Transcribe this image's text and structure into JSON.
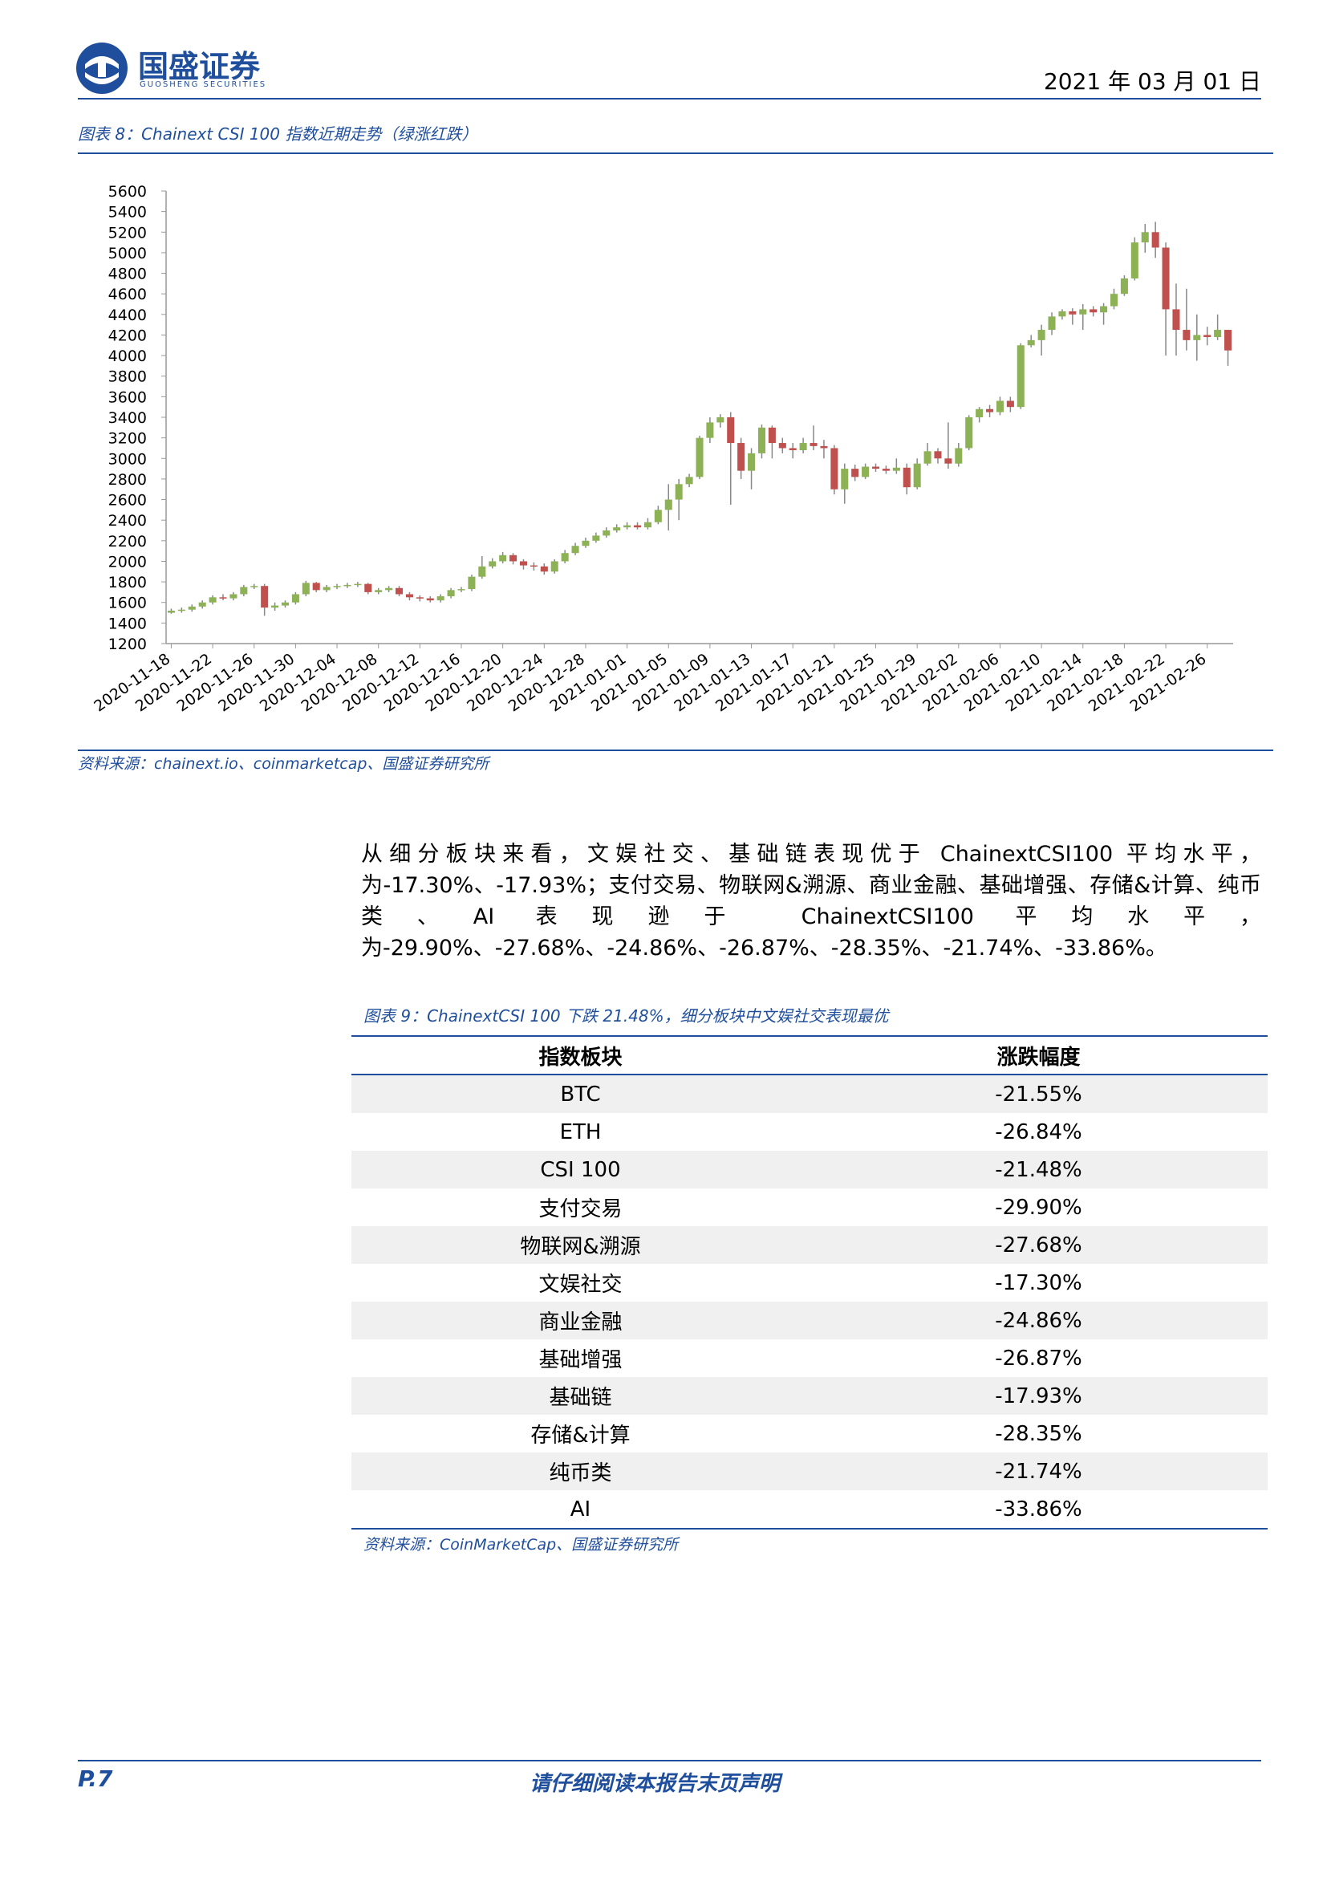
{
  "header": {
    "company": "国盛证券",
    "company_en": "GUOSHENG SECURITIES",
    "date": "2021 年 03 月 01 日"
  },
  "figure8": {
    "caption": "图表 8：Chainext CSI 100 指数近期走势（绿涨红跌）",
    "source": "资料来源：chainext.io、coinmarketcap、国盛证券研究所"
  },
  "chart_data": {
    "type": "candlestick",
    "categories": [
      "2020-11-18",
      null,
      null,
      null,
      "2020-11-22",
      null,
      null,
      null,
      "2020-11-26",
      null,
      null,
      null,
      "2020-11-30",
      null,
      null,
      null,
      "2020-12-04",
      null,
      null,
      null,
      "2020-12-08",
      null,
      null,
      null,
      "2020-12-12",
      null,
      null,
      null,
      "2020-12-16",
      null,
      null,
      null,
      "2020-12-20",
      null,
      null,
      null,
      "2020-12-24",
      null,
      null,
      null,
      "2020-12-28",
      null,
      null,
      null,
      "2021-01-01",
      null,
      null,
      null,
      "2021-01-05",
      null,
      null,
      null,
      "2021-01-09",
      null,
      null,
      null,
      "2021-01-13",
      null,
      null,
      null,
      "2021-01-17",
      null,
      null,
      null,
      "2021-01-21",
      null,
      null,
      null,
      "2021-01-25",
      null,
      null,
      null,
      "2021-01-29",
      null,
      null,
      null,
      "2021-02-02",
      null,
      null,
      null,
      "2021-02-06",
      null,
      null,
      null,
      "2021-02-10",
      null,
      null,
      null,
      "2021-02-14",
      null,
      null,
      null,
      "2021-02-18",
      null,
      null,
      null,
      "2021-02-22",
      null,
      null,
      null,
      "2021-02-26",
      null,
      null
    ],
    "open": [
      1500,
      1520,
      1530,
      1560,
      1600,
      1650,
      1640,
      1680,
      1750,
      1760,
      1550,
      1570,
      1600,
      1680,
      1790,
      1720,
      1750,
      1760,
      1770,
      1780,
      1700,
      1720,
      1740,
      1680,
      1650,
      1640,
      1620,
      1660,
      1720,
      1730,
      1850,
      1950,
      2000,
      2060,
      2000,
      1960,
      1950,
      1900,
      2000,
      2080,
      2150,
      2200,
      2250,
      2300,
      2330,
      2350,
      2330,
      2380,
      2500,
      2600,
      2750,
      2820,
      3200,
      3350,
      3400,
      3150,
      2880,
      3050,
      3300,
      3150,
      3100,
      3080,
      3150,
      3120,
      3100,
      2700,
      2900,
      2820,
      2920,
      2900,
      2880,
      2910,
      2720,
      2950,
      3070,
      3000,
      2950,
      3100,
      3400,
      3480,
      3450,
      3560,
      3500,
      4100,
      4150,
      4250,
      4380,
      4430,
      4400,
      4450,
      4420,
      4480,
      4600,
      4750,
      5100,
      5200,
      5050,
      4450,
      4250,
      4150,
      4200,
      4180,
      4250
    ],
    "high": [
      1540,
      1550,
      1580,
      1620,
      1670,
      1680,
      1700,
      1770,
      1780,
      1780,
      1600,
      1620,
      1700,
      1810,
      1800,
      1770,
      1780,
      1790,
      1800,
      1790,
      1740,
      1760,
      1760,
      1700,
      1670,
      1660,
      1680,
      1740,
      1750,
      1870,
      2050,
      2030,
      2090,
      2080,
      2020,
      1990,
      1980,
      2020,
      2110,
      2180,
      2230,
      2280,
      2330,
      2360,
      2380,
      2380,
      2420,
      2540,
      2750,
      2800,
      2850,
      3220,
      3400,
      3430,
      3450,
      3200,
      3100,
      3330,
      3320,
      3200,
      3150,
      3200,
      3320,
      3180,
      3130,
      2950,
      2940,
      2950,
      2950,
      2930,
      3000,
      2950,
      3000,
      3150,
      3100,
      3350,
      3150,
      3420,
      3500,
      3520,
      3600,
      3600,
      4120,
      4200,
      4300,
      4420,
      4450,
      4460,
      4500,
      4480,
      4510,
      4650,
      4780,
      5150,
      5280,
      5300,
      5100,
      4700,
      4650,
      4400,
      4280,
      4400,
      4250
    ],
    "low": [
      1490,
      1500,
      1510,
      1540,
      1580,
      1620,
      1620,
      1660,
      1730,
      1470,
      1520,
      1550,
      1580,
      1660,
      1700,
      1700,
      1730,
      1740,
      1750,
      1680,
      1680,
      1700,
      1660,
      1620,
      1610,
      1600,
      1600,
      1640,
      1700,
      1710,
      1830,
      1930,
      1980,
      1970,
      1920,
      1910,
      1870,
      1880,
      1980,
      2060,
      2130,
      2180,
      2230,
      2280,
      2310,
      2310,
      2310,
      2360,
      2300,
      2400,
      2720,
      2800,
      3150,
      3300,
      2550,
      2800,
      2700,
      3000,
      3000,
      3050,
      3000,
      3050,
      3080,
      3000,
      2650,
      2560,
      2780,
      2800,
      2870,
      2850,
      2850,
      2650,
      2700,
      2930,
      2950,
      2900,
      2920,
      3080,
      3350,
      3400,
      3420,
      3450,
      3480,
      4080,
      4000,
      4200,
      4350,
      4300,
      4250,
      4380,
      4300,
      4450,
      4580,
      4730,
      5000,
      4950,
      4000,
      4000,
      4050,
      3950,
      4100,
      4150,
      3900
    ],
    "close": [
      1520,
      1530,
      1560,
      1600,
      1650,
      1640,
      1680,
      1750,
      1760,
      1550,
      1570,
      1600,
      1680,
      1790,
      1720,
      1750,
      1760,
      1770,
      1780,
      1700,
      1720,
      1740,
      1680,
      1650,
      1640,
      1620,
      1660,
      1720,
      1730,
      1850,
      1950,
      2000,
      2060,
      2000,
      1960,
      1950,
      1900,
      2000,
      2080,
      2150,
      2200,
      2250,
      2300,
      2330,
      2350,
      2330,
      2380,
      2500,
      2600,
      2750,
      2820,
      3200,
      3350,
      3400,
      3150,
      2880,
      3050,
      3300,
      3150,
      3100,
      3080,
      3150,
      3120,
      3100,
      2700,
      2900,
      2820,
      2920,
      2900,
      2880,
      2910,
      2720,
      2950,
      3070,
      3000,
      2950,
      3100,
      3400,
      3480,
      3450,
      3560,
      3500,
      4100,
      4150,
      4250,
      4380,
      4430,
      4400,
      4450,
      4420,
      4480,
      4600,
      4750,
      5100,
      5200,
      5050,
      4450,
      4250,
      4150,
      4200,
      4180,
      4250,
      4050
    ],
    "up_color": "#8db255",
    "down_color": "#c0504d",
    "ylim": [
      1200,
      5600
    ],
    "yticks": [
      1200,
      1400,
      1600,
      1800,
      2000,
      2200,
      2400,
      2600,
      2800,
      3000,
      3200,
      3400,
      3600,
      3800,
      4000,
      4200,
      4400,
      4600,
      4800,
      5000,
      5200,
      5400,
      5600
    ],
    "grid": false
  },
  "paragraph": "从细分板块来看，文娱社交、基础链表现优于 ChainextCSI100 平均水平，为-17.30%、-17.93%；支付交易、物联网&溯源、商业金融、基础增强、存储&计算、纯币类、AI 表现逊于 ChainextCSI100 平均水平，为-29.90%、-27.68%、-24.86%、-26.87%、-28.35%、-21.74%、-33.86%。",
  "figure9": {
    "caption": "图表 9：ChainextCSI 100 下跌 21.48%，细分板块中文娱社交表现最优",
    "table": {
      "header": [
        "指数板块",
        "涨跌幅度"
      ],
      "rows": [
        [
          "BTC",
          "-21.55%"
        ],
        [
          "ETH",
          "-26.84%"
        ],
        [
          "CSI 100",
          "-21.48%"
        ],
        [
          "支付交易",
          "-29.90%"
        ],
        [
          "物联网&溯源",
          "-27.68%"
        ],
        [
          "文娱社交",
          "-17.30%"
        ],
        [
          "商业金融",
          "-24.86%"
        ],
        [
          "基础增强",
          "-26.87%"
        ],
        [
          "基础链",
          "-17.93%"
        ],
        [
          "存储&计算",
          "-28.35%"
        ],
        [
          "纯币类",
          "-21.74%"
        ],
        [
          "AI",
          "-33.86%"
        ]
      ]
    },
    "source": "资料来源：CoinMarketCap、国盛证券研究所"
  },
  "footer": {
    "page": "P.7",
    "notice": "请仔细阅读本报告末页声明"
  }
}
